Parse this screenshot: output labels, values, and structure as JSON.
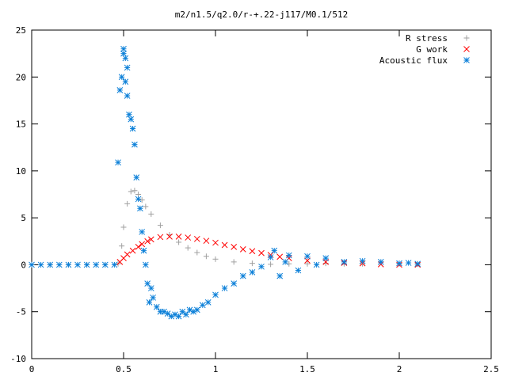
{
  "chart_data": {
    "type": "scatter",
    "title": "m2/n1.5/q2.0/r-+.22-j117/M0.1/512",
    "xlabel": "",
    "ylabel": "",
    "xlim": [
      0,
      2.5
    ],
    "ylim": [
      -10,
      25
    ],
    "x_ticks": [
      "0",
      "0.5",
      "1",
      "1.5",
      "2",
      "2.5"
    ],
    "y_ticks": [
      "-10",
      "-5",
      "0",
      "5",
      "10",
      "15",
      "20",
      "25"
    ],
    "grid": false,
    "legend_position": "top-right",
    "series": [
      {
        "name": "R stress",
        "marker": "plus",
        "color": "#a0a0a0",
        "x": [
          0.0,
          0.1,
          0.2,
          0.3,
          0.4,
          0.47,
          0.49,
          0.5,
          0.52,
          0.54,
          0.56,
          0.58,
          0.6,
          0.62,
          0.65,
          0.7,
          0.75,
          0.8,
          0.85,
          0.9,
          0.95,
          1.0,
          1.1,
          1.2,
          1.3,
          1.4,
          1.5,
          1.6,
          1.7,
          1.8,
          2.0,
          2.1
        ],
        "y": [
          0,
          0,
          0,
          0,
          0,
          0.1,
          2.0,
          4.0,
          6.5,
          7.8,
          7.9,
          7.5,
          6.9,
          6.2,
          5.4,
          4.2,
          3.2,
          2.4,
          1.8,
          1.3,
          0.9,
          0.6,
          0.3,
          0.15,
          0.05,
          0.1,
          0.1,
          0.15,
          0.1,
          0.1,
          0.1,
          0.05
        ]
      },
      {
        "name": "G work",
        "marker": "cross",
        "color": "#ff0000",
        "x": [
          0.48,
          0.5,
          0.52,
          0.55,
          0.58,
          0.6,
          0.63,
          0.65,
          0.7,
          0.75,
          0.8,
          0.85,
          0.9,
          0.95,
          1.0,
          1.05,
          1.1,
          1.15,
          1.2,
          1.25,
          1.3,
          1.35,
          1.4,
          1.5,
          1.6,
          1.7,
          1.8,
          1.9,
          2.0,
          2.1
        ],
        "y": [
          0.3,
          0.7,
          1.1,
          1.5,
          1.9,
          2.2,
          2.5,
          2.7,
          2.95,
          3.0,
          3.0,
          2.9,
          2.75,
          2.55,
          2.35,
          2.1,
          1.9,
          1.65,
          1.45,
          1.25,
          1.05,
          0.85,
          0.7,
          0.45,
          0.3,
          0.2,
          0.15,
          0.05,
          0.0,
          0.0
        ]
      },
      {
        "name": "Acoustic flux",
        "marker": "star",
        "color": "#0a7fd8",
        "x": [
          0.0,
          0.05,
          0.1,
          0.15,
          0.2,
          0.25,
          0.3,
          0.35,
          0.4,
          0.45,
          0.47,
          0.48,
          0.49,
          0.5,
          0.5,
          0.51,
          0.51,
          0.52,
          0.52,
          0.53,
          0.54,
          0.55,
          0.56,
          0.57,
          0.58,
          0.59,
          0.6,
          0.61,
          0.62,
          0.63,
          0.64,
          0.65,
          0.66,
          0.68,
          0.7,
          0.72,
          0.74,
          0.76,
          0.78,
          0.8,
          0.82,
          0.84,
          0.86,
          0.88,
          0.9,
          0.93,
          0.96,
          1.0,
          1.05,
          1.1,
          1.15,
          1.2,
          1.25,
          1.3,
          1.32,
          1.35,
          1.38,
          1.4,
          1.45,
          1.5,
          1.55,
          1.6,
          1.7,
          1.8,
          1.9,
          2.0,
          2.05,
          2.1
        ],
        "y": [
          0,
          0,
          0,
          0,
          0,
          0,
          0,
          0,
          0,
          0,
          10.9,
          18.6,
          20.0,
          22.5,
          23.0,
          22.0,
          19.5,
          18.0,
          21.0,
          16.0,
          15.5,
          14.5,
          12.8,
          9.3,
          7.0,
          6.0,
          3.5,
          1.5,
          0.0,
          -2.0,
          -4.0,
          -2.5,
          -3.5,
          -4.5,
          -5.0,
          -5.0,
          -5.2,
          -5.5,
          -5.3,
          -5.5,
          -5.0,
          -5.3,
          -4.8,
          -5.0,
          -4.8,
          -4.3,
          -4.0,
          -3.2,
          -2.5,
          -2.0,
          -1.2,
          -0.8,
          -0.2,
          0.8,
          1.5,
          -1.2,
          0.3,
          1.0,
          -0.6,
          0.9,
          0.0,
          0.7,
          0.3,
          0.4,
          0.3,
          0.15,
          0.2,
          0.1
        ]
      }
    ]
  }
}
